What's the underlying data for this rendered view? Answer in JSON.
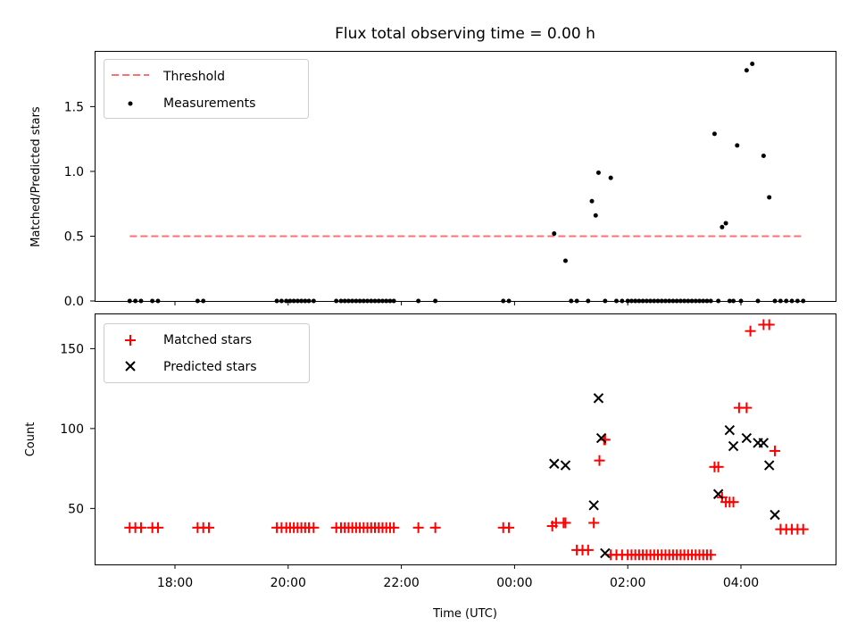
{
  "chart_data": [
    {
      "type": "scatter",
      "title": "Flux total observing time = 0.00 h",
      "xlabel": "",
      "ylabel": "Matched/Predicted stars",
      "ylim": [
        0,
        1.93
      ],
      "yticks": [
        0.0,
        0.5,
        1.0,
        1.5
      ],
      "ytick_labels": [
        "0.0",
        "0.5",
        "1.0",
        "1.5"
      ],
      "legend_position": "upper-left",
      "grid": false,
      "threshold": {
        "name": "Threshold",
        "y": 0.5,
        "x_start": "17:12",
        "x_end": "05:06",
        "color": "#ff7070"
      },
      "series": [
        {
          "name": "Measurements",
          "color": "#000000",
          "x": [
            "17:12",
            "17:18",
            "17:24",
            "17:36",
            "17:42",
            "18:24",
            "18:30",
            "19:48",
            "19:53",
            "19:58",
            "20:02",
            "20:06",
            "20:10",
            "20:14",
            "20:18",
            "20:22",
            "20:27",
            "20:51",
            "20:56",
            "21:00",
            "21:04",
            "21:08",
            "21:12",
            "21:16",
            "21:20",
            "21:24",
            "21:28",
            "21:32",
            "21:36",
            "21:40",
            "21:44",
            "21:48",
            "21:52",
            "22:18",
            "22:36",
            "23:48",
            "23:54",
            "00:42",
            "00:54",
            "01:00",
            "01:06",
            "01:18",
            "01:22",
            "01:26",
            "01:29",
            "01:36",
            "01:42",
            "01:48",
            "01:54",
            "02:00",
            "02:04",
            "02:08",
            "02:12",
            "02:16",
            "02:20",
            "02:24",
            "02:28",
            "02:32",
            "02:36",
            "02:40",
            "02:44",
            "02:48",
            "02:52",
            "02:56",
            "03:00",
            "03:04",
            "03:08",
            "03:12",
            "03:16",
            "03:20",
            "03:24",
            "03:28",
            "03:32",
            "03:36",
            "03:40",
            "03:44",
            "03:48",
            "03:52",
            "03:56",
            "04:00",
            "04:06",
            "04:12",
            "04:18",
            "04:24",
            "04:30",
            "04:36",
            "04:42",
            "04:48",
            "04:54",
            "05:00",
            "05:06"
          ],
          "y": [
            0,
            0,
            0,
            0,
            0,
            0,
            0,
            0,
            0,
            0,
            0,
            0,
            0,
            0,
            0,
            0,
            0,
            0,
            0,
            0,
            0,
            0,
            0,
            0,
            0,
            0,
            0,
            0,
            0,
            0,
            0,
            0,
            0,
            0,
            0,
            0,
            0,
            0.52,
            0.31,
            0,
            0,
            0,
            0.77,
            0.66,
            0.99,
            0,
            0.95,
            0,
            0,
            0,
            0,
            0,
            0,
            0,
            0,
            0,
            0,
            0,
            0,
            0,
            0,
            0,
            0,
            0,
            0,
            0,
            0,
            0,
            0,
            0,
            0,
            0,
            1.29,
            0,
            0.57,
            0.6,
            0,
            0,
            1.2,
            0,
            1.78,
            1.83,
            0,
            1.12,
            0.8,
            0,
            0,
            0,
            0,
            0,
            0
          ]
        }
      ]
    },
    {
      "type": "scatter",
      "title": "",
      "xlabel": "Time (UTC)",
      "ylabel": "Count",
      "ylim": [
        15,
        172
      ],
      "yticks": [
        50,
        100,
        150
      ],
      "ytick_labels": [
        "50",
        "100",
        "150"
      ],
      "xticks": [
        "18:00",
        "20:00",
        "22:00",
        "00:00",
        "02:00",
        "04:00"
      ],
      "legend_position": "upper-left",
      "grid": false,
      "series": [
        {
          "name": "Matched stars",
          "marker": "plus",
          "color": "#ff0000",
          "x": [
            "17:12",
            "17:18",
            "17:24",
            "17:36",
            "17:42",
            "18:24",
            "18:30",
            "18:36",
            "19:48",
            "19:53",
            "19:58",
            "20:02",
            "20:06",
            "20:10",
            "20:14",
            "20:18",
            "20:22",
            "20:27",
            "20:51",
            "20:56",
            "21:00",
            "21:04",
            "21:08",
            "21:12",
            "21:16",
            "21:20",
            "21:24",
            "21:28",
            "21:32",
            "21:36",
            "21:40",
            "21:44",
            "21:48",
            "21:52",
            "22:18",
            "22:36",
            "23:48",
            "23:54",
            "00:40",
            "00:44",
            "00:52",
            "00:54",
            "01:06",
            "01:12",
            "01:18",
            "01:24",
            "01:30",
            "01:35",
            "01:36",
            "01:42",
            "01:48",
            "01:54",
            "02:00",
            "02:04",
            "02:08",
            "02:12",
            "02:16",
            "02:20",
            "02:24",
            "02:28",
            "02:32",
            "02:36",
            "02:40",
            "02:44",
            "02:48",
            "02:52",
            "02:56",
            "03:00",
            "03:04",
            "03:08",
            "03:12",
            "03:16",
            "03:20",
            "03:24",
            "03:28",
            "03:32",
            "03:36",
            "03:40",
            "03:44",
            "03:48",
            "03:52",
            "03:58",
            "04:06",
            "04:10",
            "04:24",
            "04:30",
            "04:36",
            "04:42",
            "04:48",
            "04:54",
            "05:00",
            "05:06"
          ],
          "y": [
            38,
            38,
            38,
            38,
            38,
            38,
            38,
            38,
            38,
            38,
            38,
            38,
            38,
            38,
            38,
            38,
            38,
            38,
            38,
            38,
            38,
            38,
            38,
            38,
            38,
            38,
            38,
            38,
            38,
            38,
            38,
            38,
            38,
            38,
            38,
            38,
            38,
            38,
            39,
            41,
            41,
            41,
            24,
            24,
            24,
            41,
            80,
            93,
            93,
            21,
            21,
            21,
            21,
            21,
            21,
            21,
            21,
            21,
            21,
            21,
            21,
            21,
            21,
            21,
            21,
            21,
            21,
            21,
            21,
            21,
            21,
            21,
            21,
            21,
            21,
            76,
            76,
            57,
            54,
            54,
            54,
            113,
            113,
            161,
            165,
            165,
            86,
            37,
            37,
            37,
            37,
            37
          ]
        },
        {
          "name": "Predicted stars",
          "marker": "x",
          "color": "#000000",
          "x": [
            "00:42",
            "00:54",
            "01:24",
            "01:29",
            "01:32",
            "01:36",
            "03:36",
            "03:48",
            "03:52",
            "04:06",
            "04:18",
            "04:24",
            "04:30",
            "04:36"
          ],
          "y": [
            78,
            77,
            52,
            119,
            94,
            22,
            59,
            99,
            89,
            94,
            91,
            91,
            77,
            46
          ]
        }
      ]
    }
  ]
}
